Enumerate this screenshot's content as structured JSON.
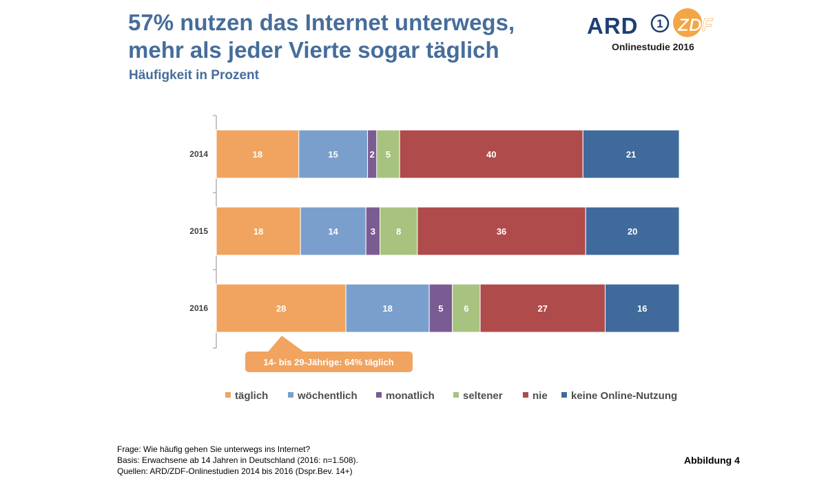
{
  "header": {
    "title_line1": "57% nutzen das Internet unterwegs,",
    "title_line2": "mehr als jeder Vierte sogar täglich",
    "subtitle": "Häufigkeit in Prozent"
  },
  "logo": {
    "ard": "ARD",
    "one": "1",
    "zdf": "ZDF",
    "caption": "Onlinestudie 2016"
  },
  "chart_data": {
    "type": "bar",
    "orientation": "horizontal",
    "stacked": true,
    "categories": [
      "2014",
      "2015",
      "2016"
    ],
    "series": [
      {
        "name": "täglich",
        "color": "#f0a460",
        "values": [
          18,
          18,
          28
        ]
      },
      {
        "name": "wöchentlich",
        "color": "#7a9fcc",
        "values": [
          15,
          14,
          18
        ]
      },
      {
        "name": "monatlich",
        "color": "#7a5c93",
        "values": [
          2,
          3,
          5
        ]
      },
      {
        "name": "seltener",
        "color": "#a7c37f",
        "values": [
          5,
          8,
          6
        ]
      },
      {
        "name": "nie",
        "color": "#b04b4b",
        "values": [
          40,
          36,
          27
        ]
      },
      {
        "name": "keine Online-Nutzung",
        "color": "#3f6a9b",
        "values": [
          21,
          20,
          16
        ]
      }
    ],
    "annotation": "14- bis 29-Jährige: 64% täglich",
    "annotation_color": "#f0a460",
    "legend_position": "bottom",
    "grid": false
  },
  "footnotes": {
    "frage": "Frage: Wie häufig gehen Sie unterwegs ins Internet?",
    "basis": "Basis: Erwachsene ab 14 Jahren in Deutschland (2016: n=1.508).",
    "quellen": "Quellen: ARD/ZDF-Onlinestudien 2014 bis 2016 (Dspr.Bev. 14+)"
  },
  "figure_label": "Abbildung 4"
}
